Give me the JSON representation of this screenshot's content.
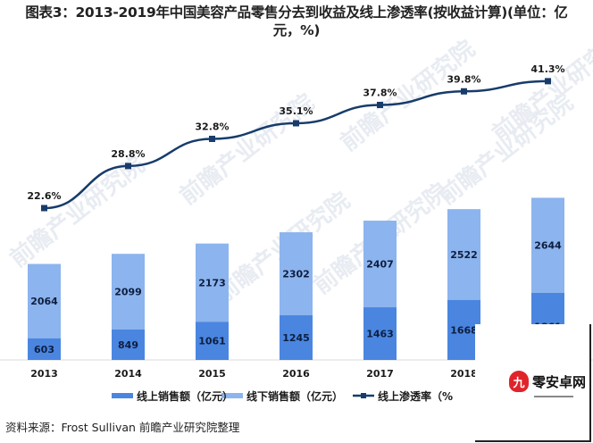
{
  "title": "图表3：2013-2019年中国美容产品零售分去到收益及线上渗透率(按收益计算)(单位：亿元，%)",
  "source": "资料来源：Frost Sullivan 前瞻产业研究院整理",
  "watermark": "前瞻产业研究院",
  "overlay_logo": {
    "badge": "九",
    "text": "零安卓网"
  },
  "colors": {
    "online": "#4A86E0",
    "offline": "#8CB4EE",
    "line": "#173C6B",
    "label": "#0E1E40"
  },
  "legend": [
    {
      "label": "线上销售额（亿元）",
      "icon": "bar-swatch-dark"
    },
    {
      "label": "线下销售额（亿元）",
      "icon": "bar-swatch-light"
    },
    {
      "label": "线上渗透率（%",
      "icon": "line-marker"
    }
  ],
  "chart_data": {
    "type": "bar",
    "subtype": "stacked-bar-with-line",
    "title": "2013-2019年中国美容产品零售分去到收益及线上渗透率(按收益计算)(单位：亿元，%)",
    "xlabel": "",
    "ylabel": "",
    "categories": [
      "2013",
      "2014",
      "2015",
      "2016",
      "2017",
      "2018",
      "2019"
    ],
    "series": [
      {
        "name": "线上销售额（亿元）",
        "type": "bar",
        "stack": "sales",
        "values": [
          603,
          849,
          1061,
          1245,
          1463,
          1668,
          1861
        ]
      },
      {
        "name": "线下销售额（亿元）",
        "type": "bar",
        "stack": "sales",
        "values": [
          2064,
          2099,
          2173,
          2302,
          2407,
          2522,
          2644
        ]
      },
      {
        "name": "线上渗透率（%）",
        "type": "line",
        "axis": "secondary",
        "values": [
          22.6,
          28.8,
          32.8,
          35.1,
          37.8,
          39.8,
          41.3
        ],
        "labels": [
          "22.6%",
          "28.8%",
          "32.8%",
          "35.1%",
          "37.8%",
          "39.8%",
          "41.3%"
        ]
      }
    ],
    "x_tick_labels_visible": [
      "2013",
      "2014",
      "2015",
      "2016",
      "2017",
      "2018"
    ],
    "grid": false,
    "legend_position": "bottom"
  }
}
